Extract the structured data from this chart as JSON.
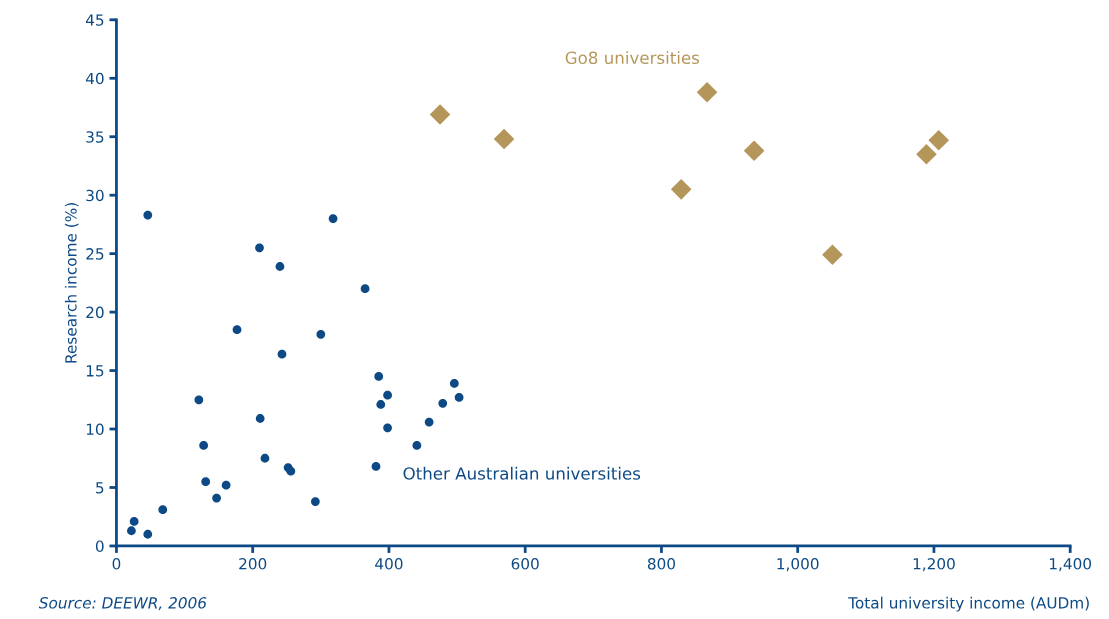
{
  "chart_data": {
    "type": "scatter",
    "xlabel": "Total university income (AUDm)",
    "ylabel": "Research income (%)",
    "xlim": [
      0,
      1400
    ],
    "xticks": [
      0,
      200,
      400,
      600,
      800,
      {
        "value": 1000,
        "label": "1,000"
      },
      {
        "value": 1200,
        "label": "1,200"
      },
      {
        "value": 1400,
        "label": "1,400"
      }
    ],
    "ylim": [
      0,
      45
    ],
    "yticks": [
      0,
      5,
      10,
      15,
      20,
      25,
      30,
      35,
      40,
      45
    ],
    "grid": false,
    "legend": false,
    "series": [
      {
        "name": "Other Australian universities",
        "color": "#0d4a85",
        "marker": "circle",
        "x": [
          46,
          318,
          210,
          240,
          365,
          177,
          300,
          243,
          385,
          496,
          398,
          121,
          388,
          479,
          503,
          211,
          398,
          459,
          441,
          128,
          218,
          381,
          252,
          256,
          131,
          161,
          147,
          292,
          68,
          26,
          22,
          46
        ],
        "values": [
          28.3,
          28.0,
          25.5,
          23.9,
          22.0,
          18.5,
          18.1,
          16.4,
          14.5,
          13.9,
          12.9,
          12.5,
          12.1,
          12.2,
          12.7,
          10.9,
          10.1,
          10.6,
          8.6,
          8.6,
          7.5,
          6.8,
          6.7,
          6.4,
          5.5,
          5.2,
          4.1,
          3.8,
          3.1,
          2.1,
          1.3,
          1.0
        ]
      },
      {
        "name": "Go8 universities",
        "color": "#b5965a",
        "marker": "diamond",
        "x": [
          475,
          569,
          867,
          829,
          936,
          1051,
          1189,
          1207
        ],
        "values": [
          36.9,
          34.8,
          38.8,
          30.5,
          33.8,
          24.9,
          33.5,
          34.7
        ]
      }
    ],
    "annotations": [
      "Source: DEEWR, 2006"
    ]
  }
}
